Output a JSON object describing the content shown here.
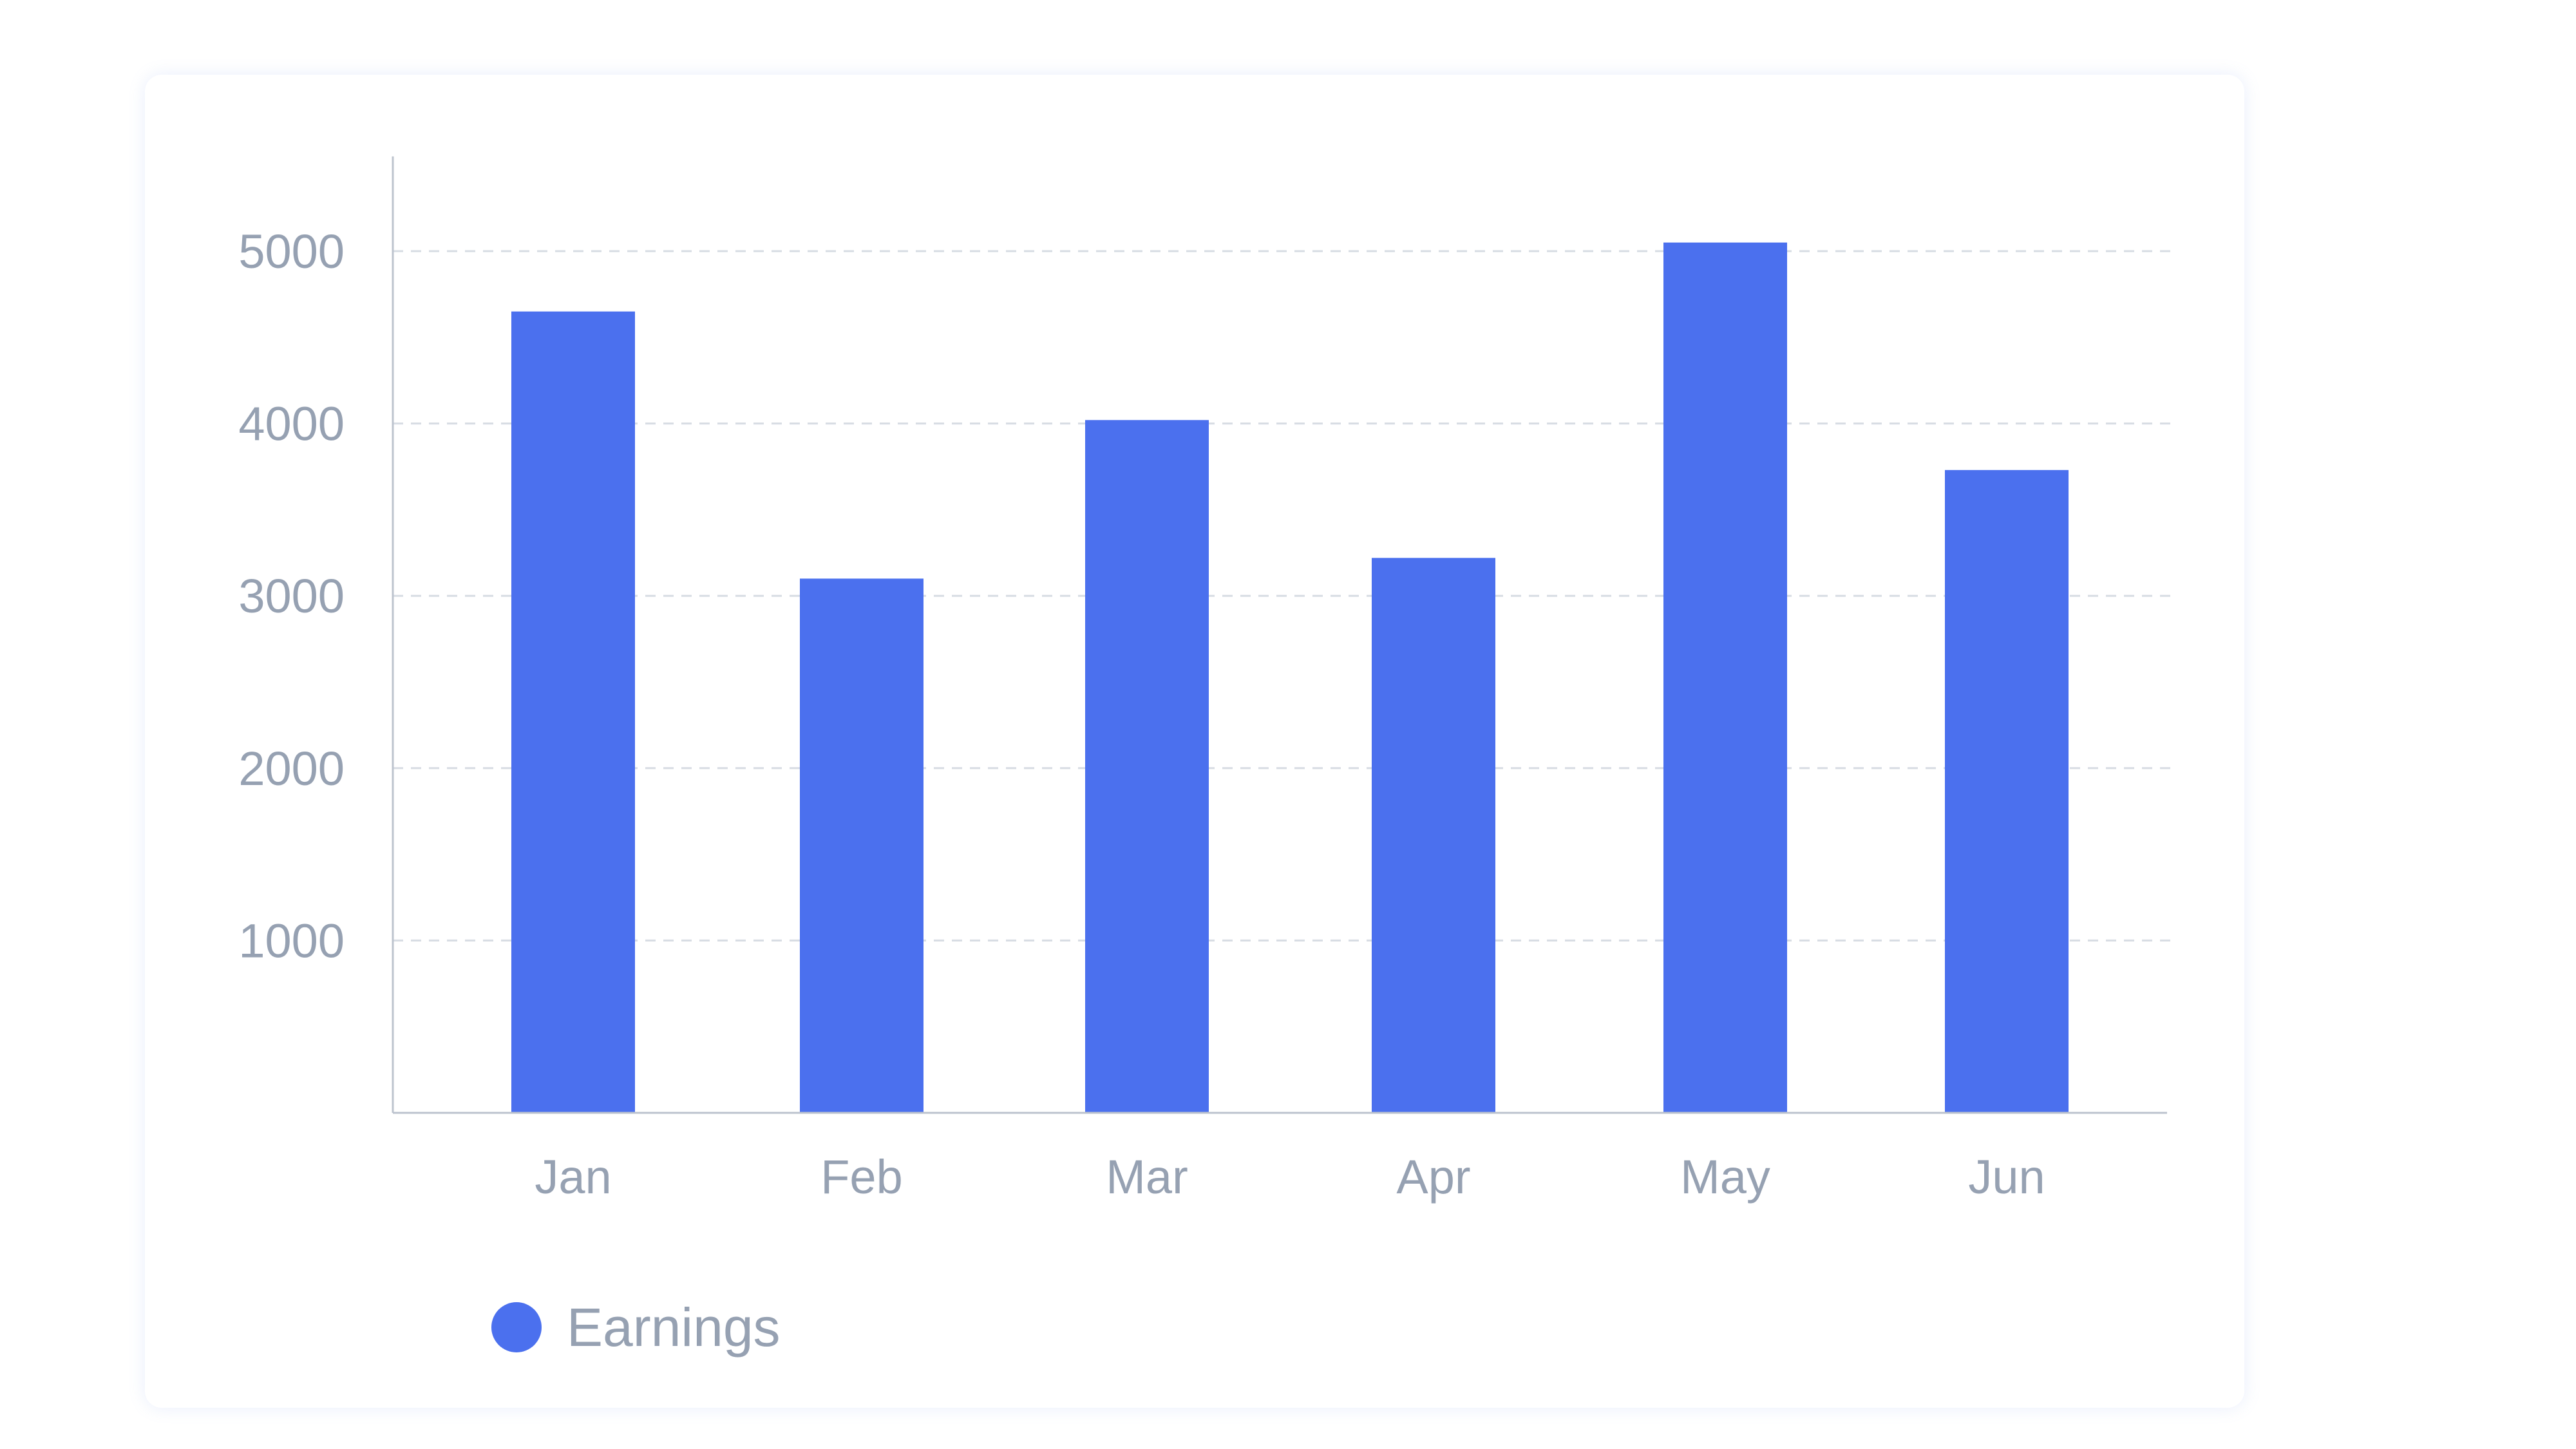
{
  "chart_data": {
    "type": "bar",
    "categories": [
      "Jan",
      "Feb",
      "Mar",
      "Apr",
      "May",
      "Jun"
    ],
    "series": [
      {
        "name": "Earnings",
        "values": [
          4650,
          3100,
          4020,
          3220,
          5050,
          3730
        ],
        "color": "#4b70ee"
      }
    ],
    "yticks": [
      1000,
      2000,
      3000,
      4000,
      5000
    ],
    "ylim": [
      0,
      5550
    ],
    "grid": true,
    "legend": "bottom-left"
  },
  "colors": {
    "axis": "#bcc3ce",
    "grid": "#d7dce3",
    "text": "#96a1b2"
  }
}
